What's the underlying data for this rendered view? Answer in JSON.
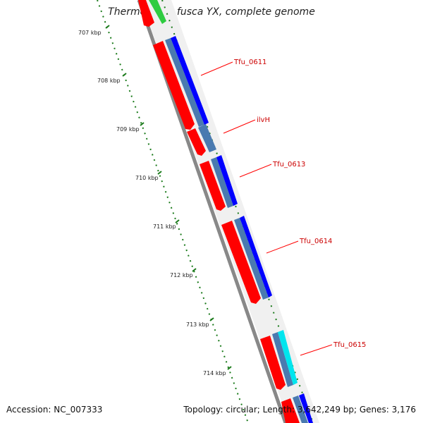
{
  "title": "Thermobifida fusca YX, complete genome",
  "accession_text": "Accession: NC_007333",
  "summary_text": "Topology: circular; Length: 3,642,249 bp; Genes: 3,176",
  "kbp_ticks": [
    "707 kbp",
    "708 kbp",
    "709 kbp",
    "710 kbp",
    "711 kbp",
    "712 kbp",
    "713 kbp",
    "714 kbp"
  ],
  "gene_labels": [
    "Tfu_0611",
    "ilvH",
    "Tfu_0613",
    "Tfu_0614",
    "Tfu_0615"
  ],
  "colors": {
    "cds": "#ff0000",
    "gene": "#0000ff",
    "gene_alt": "#00e5ee",
    "feature": "#4a7ab0",
    "backbone": "#888888",
    "tick": "#1a7a1a",
    "upstream": "#2ecc40",
    "label": "#cc0000"
  }
}
